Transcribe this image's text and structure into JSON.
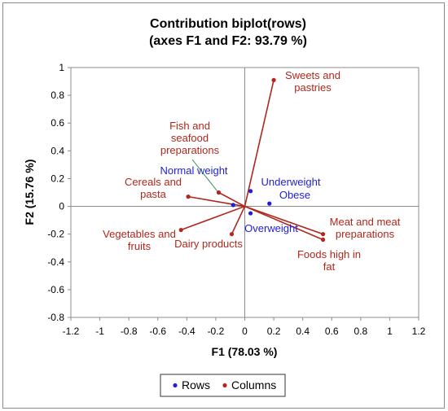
{
  "chart_data": {
    "type": "scatter",
    "title": "Contribution biplot(rows)",
    "subtitle": "(axes F1 and F2: 93.79 %)",
    "xlabel": "F1 (78.03 %)",
    "ylabel": "F2 (15.76 %)",
    "xlim": [
      -1.2,
      1.2
    ],
    "ylim": [
      -0.8,
      1.0
    ],
    "xticks": [
      "-1.2",
      "-1",
      "-0.8",
      "-0.6",
      "-0.4",
      "-0.2",
      "0",
      "0.2",
      "0.4",
      "0.6",
      "0.8",
      "1",
      "1.2"
    ],
    "yticks": [
      "-0.8",
      "-0.6",
      "-0.4",
      "-0.2",
      "0",
      "0.2",
      "0.4",
      "0.6",
      "0.8",
      "1"
    ],
    "grid": false,
    "legend_position": "bottom",
    "colors": {
      "rows": "#1f1fd6",
      "columns": "#b0271c",
      "axis": "#8c8c8c"
    },
    "series": [
      {
        "name": "Rows",
        "points": [
          {
            "label": "Normal weight",
            "x": -0.08,
            "y": 0.01
          },
          {
            "label": "Underweight",
            "x": 0.04,
            "y": 0.11
          },
          {
            "label": "Obese",
            "x": 0.17,
            "y": 0.02
          },
          {
            "label": "Overweight",
            "x": 0.04,
            "y": -0.05
          }
        ]
      },
      {
        "name": "Columns",
        "vectors": true,
        "points": [
          {
            "label": "Sweets and pastries",
            "x": 0.2,
            "y": 0.91
          },
          {
            "label": "Fish and seafood preparations",
            "x": -0.18,
            "y": 0.1
          },
          {
            "label": "Cereals and pasta",
            "x": -0.39,
            "y": 0.07
          },
          {
            "label": "Vegetables and fruits",
            "x": -0.44,
            "y": -0.17
          },
          {
            "label": "Dairy products",
            "x": -0.09,
            "y": -0.2
          },
          {
            "label": "Meat and meat preparations",
            "x": 0.54,
            "y": -0.2
          },
          {
            "label": "Foods high in fat",
            "x": 0.54,
            "y": -0.24
          }
        ]
      }
    ]
  }
}
